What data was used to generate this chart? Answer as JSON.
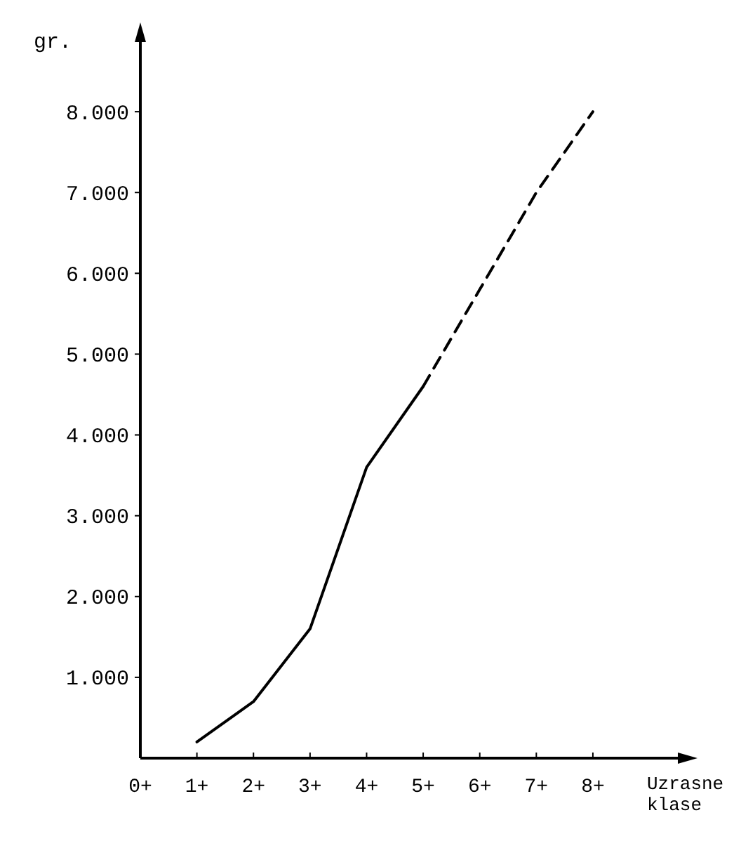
{
  "chart_data": {
    "type": "line",
    "ylabel": "gr.",
    "xlabel": "Uzrasne klase",
    "categories": [
      "0+",
      "1+",
      "2+",
      "3+",
      "4+",
      "5+",
      "6+",
      "7+",
      "8+"
    ],
    "ylim": [
      0,
      9000
    ],
    "yticks": [
      {
        "value": 1000,
        "label": "1.000"
      },
      {
        "value": 2000,
        "label": "2.000"
      },
      {
        "value": 3000,
        "label": "3.000"
      },
      {
        "value": 4000,
        "label": "4.000"
      },
      {
        "value": 5000,
        "label": "5.000"
      },
      {
        "value": 6000,
        "label": "6.000"
      },
      {
        "value": 7000,
        "label": "7.000"
      },
      {
        "value": 8000,
        "label": "8.000"
      }
    ],
    "grid": false,
    "marker": "none",
    "series": [
      {
        "color": "#000000",
        "line_style": "solid",
        "values": [
          null,
          200,
          700,
          1600,
          3600,
          4600,
          null,
          null,
          null
        ]
      },
      {
        "color": "#000000",
        "line_style": "dashed",
        "values": [
          null,
          null,
          null,
          null,
          null,
          4600,
          5800,
          7000,
          8000
        ]
      }
    ]
  }
}
